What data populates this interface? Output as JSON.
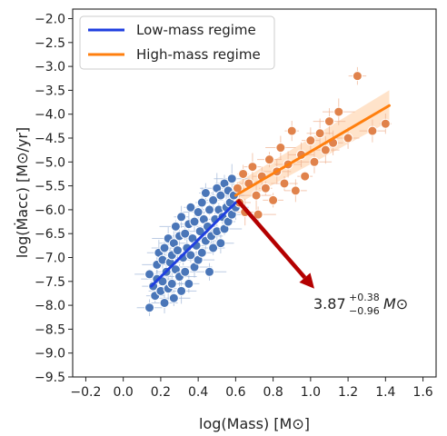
{
  "chart_data": {
    "type": "scatter",
    "xlabel": "log(Mass) [M⊙]",
    "ylabel": "log(Ṁacc) [M⊙/yr]",
    "xlim": [
      -0.27,
      1.67
    ],
    "ylim": [
      -9.5,
      -1.8
    ],
    "xticks": [
      "−0.2",
      "0.0",
      "0.2",
      "0.4",
      "0.6",
      "0.8",
      "1.0",
      "1.2",
      "1.4",
      "1.6"
    ],
    "xtick_values": [
      -0.2,
      0.0,
      0.2,
      0.4,
      0.6,
      0.8,
      1.0,
      1.2,
      1.4,
      1.6
    ],
    "yticks": [
      "−2.0",
      "−2.5",
      "−3.0",
      "−3.5",
      "−4.0",
      "−4.5",
      "−5.0",
      "−5.5",
      "−6.0",
      "−6.5",
      "−7.0",
      "−7.5",
      "−8.0",
      "−8.5",
      "−9.0",
      "−9.5"
    ],
    "ytick_values": [
      -2.0,
      -2.5,
      -3.0,
      -3.5,
      -4.0,
      -4.5,
      -5.0,
      -5.5,
      -6.0,
      -6.5,
      -7.0,
      -7.5,
      -8.0,
      -8.5,
      -9.0,
      -9.5
    ],
    "legend_position": "top-left",
    "series": [
      {
        "name": "Low-mass regime",
        "color": "#1f3fe0",
        "point_color": "#4a76b8",
        "fit": {
          "x": [
            0.15,
            0.6
          ],
          "y": [
            -7.6,
            -5.85
          ]
        },
        "points": [
          [
            0.14,
            -7.35
          ],
          [
            0.14,
            -8.05
          ],
          [
            0.16,
            -7.6
          ],
          [
            0.17,
            -7.8
          ],
          [
            0.18,
            -7.45
          ],
          [
            0.18,
            -7.15
          ],
          [
            0.19,
            -6.9
          ],
          [
            0.2,
            -7.7
          ],
          [
            0.21,
            -7.5
          ],
          [
            0.21,
            -7.05
          ],
          [
            0.22,
            -6.8
          ],
          [
            0.22,
            -7.95
          ],
          [
            0.23,
            -7.3
          ],
          [
            0.24,
            -6.6
          ],
          [
            0.24,
            -7.65
          ],
          [
            0.25,
            -7.1
          ],
          [
            0.26,
            -6.95
          ],
          [
            0.26,
            -7.55
          ],
          [
            0.27,
            -6.7
          ],
          [
            0.27,
            -7.85
          ],
          [
            0.28,
            -6.35
          ],
          [
            0.28,
            -7.25
          ],
          [
            0.29,
            -6.85
          ],
          [
            0.3,
            -7.4
          ],
          [
            0.3,
            -6.55
          ],
          [
            0.31,
            -7.7
          ],
          [
            0.31,
            -6.15
          ],
          [
            0.32,
            -7.0
          ],
          [
            0.33,
            -6.5
          ],
          [
            0.33,
            -7.3
          ],
          [
            0.34,
            -6.8
          ],
          [
            0.35,
            -6.3
          ],
          [
            0.35,
            -7.55
          ],
          [
            0.36,
            -6.95
          ],
          [
            0.36,
            -5.95
          ],
          [
            0.37,
            -6.6
          ],
          [
            0.38,
            -7.2
          ],
          [
            0.38,
            -6.25
          ],
          [
            0.39,
            -6.75
          ],
          [
            0.4,
            -6.05
          ],
          [
            0.4,
            -7.05
          ],
          [
            0.41,
            -6.45
          ],
          [
            0.42,
            -5.85
          ],
          [
            0.42,
            -6.9
          ],
          [
            0.43,
            -6.2
          ],
          [
            0.44,
            -6.65
          ],
          [
            0.44,
            -5.65
          ],
          [
            0.45,
            -6.35
          ],
          [
            0.46,
            -6.0
          ],
          [
            0.46,
            -7.3
          ],
          [
            0.47,
            -6.55
          ],
          [
            0.48,
            -5.8
          ],
          [
            0.48,
            -6.8
          ],
          [
            0.49,
            -6.2
          ],
          [
            0.5,
            -5.55
          ],
          [
            0.5,
            -6.45
          ],
          [
            0.51,
            -6.0
          ],
          [
            0.52,
            -6.7
          ],
          [
            0.52,
            -5.7
          ],
          [
            0.53,
            -6.15
          ],
          [
            0.54,
            -5.45
          ],
          [
            0.54,
            -6.4
          ],
          [
            0.55,
            -5.95
          ],
          [
            0.56,
            -6.25
          ],
          [
            0.56,
            -5.6
          ],
          [
            0.57,
            -5.85
          ],
          [
            0.58,
            -5.35
          ],
          [
            0.58,
            -6.1
          ],
          [
            0.59,
            -5.7
          ],
          [
            0.6,
            -5.95
          ]
        ]
      },
      {
        "name": "High-mass regime",
        "color": "#ff7f0e",
        "point_color": "#e0824b",
        "fit": {
          "x": [
            0.6,
            1.42
          ],
          "y": [
            -5.7,
            -3.82
          ]
        },
        "band_upper": [
          -5.45,
          -3.5
        ],
        "band_lower": [
          -5.9,
          -4.15
        ],
        "points": [
          [
            0.61,
            -5.55
          ],
          [
            0.62,
            -5.85
          ],
          [
            0.64,
            -5.25
          ],
          [
            0.65,
            -6.05
          ],
          [
            0.67,
            -5.45
          ],
          [
            0.69,
            -5.1
          ],
          [
            0.71,
            -5.7
          ],
          [
            0.72,
            -6.1
          ],
          [
            0.74,
            -5.3
          ],
          [
            0.76,
            -5.55
          ],
          [
            0.78,
            -4.95
          ],
          [
            0.8,
            -5.8
          ],
          [
            0.82,
            -5.2
          ],
          [
            0.84,
            -4.7
          ],
          [
            0.86,
            -5.45
          ],
          [
            0.88,
            -5.05
          ],
          [
            0.9,
            -4.35
          ],
          [
            0.92,
            -5.6
          ],
          [
            0.95,
            -4.85
          ],
          [
            0.97,
            -5.3
          ],
          [
            1.0,
            -4.55
          ],
          [
            1.02,
            -5.0
          ],
          [
            1.05,
            -4.4
          ],
          [
            1.08,
            -4.75
          ],
          [
            1.1,
            -4.15
          ],
          [
            1.12,
            -4.6
          ],
          [
            1.15,
            -3.95
          ],
          [
            1.2,
            -4.5
          ],
          [
            1.25,
            -3.2
          ],
          [
            1.33,
            -4.35
          ],
          [
            1.4,
            -4.2
          ]
        ]
      }
    ],
    "annotation": {
      "arrow_from": [
        0.61,
        -5.8
      ],
      "arrow_to": [
        1.02,
        -7.65
      ],
      "arrow_color": "#b40000",
      "text_main": "3.87",
      "text_sup": "+0.38",
      "text_sub": "−0.96",
      "text_unit": "M⊙"
    }
  }
}
